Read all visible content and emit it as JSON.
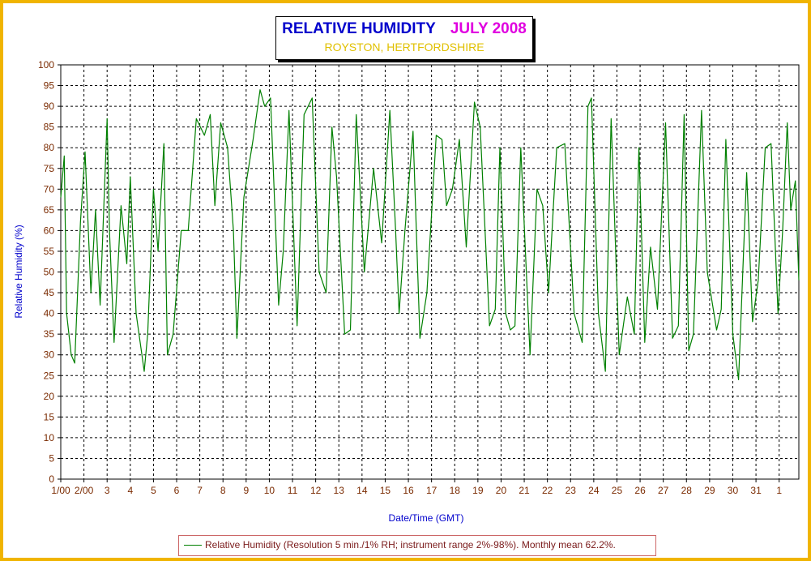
{
  "chart_data": {
    "type": "line",
    "title": "RELATIVE HUMIDITY",
    "title_date": "JULY 2008",
    "subtitle": "ROYSTON, HERTFORDSHIRE",
    "xlabel": "Date/Time (GMT)",
    "ylabel": "Relative Humidity (%)",
    "ylim": [
      0,
      100
    ],
    "xlim": [
      1,
      32.85
    ],
    "yticks": [
      0,
      5,
      10,
      15,
      20,
      25,
      30,
      35,
      40,
      45,
      50,
      55,
      60,
      65,
      70,
      75,
      80,
      85,
      90,
      95,
      100
    ],
    "x_tick_labels": [
      {
        "x": 1,
        "label": "1/00"
      },
      {
        "x": 2,
        "label": "2/00"
      },
      {
        "x": 3,
        "label": "3"
      },
      {
        "x": 4,
        "label": "4"
      },
      {
        "x": 5,
        "label": "5"
      },
      {
        "x": 6,
        "label": "6"
      },
      {
        "x": 7,
        "label": "7"
      },
      {
        "x": 8,
        "label": "8"
      },
      {
        "x": 9,
        "label": "9"
      },
      {
        "x": 10,
        "label": "10"
      },
      {
        "x": 11,
        "label": "11"
      },
      {
        "x": 12,
        "label": "12"
      },
      {
        "x": 13,
        "label": "13"
      },
      {
        "x": 14,
        "label": "14"
      },
      {
        "x": 15,
        "label": "15"
      },
      {
        "x": 16,
        "label": "16"
      },
      {
        "x": 17,
        "label": "17"
      },
      {
        "x": 18,
        "label": "18"
      },
      {
        "x": 19,
        "label": "19"
      },
      {
        "x": 20,
        "label": "20"
      },
      {
        "x": 21,
        "label": "21"
      },
      {
        "x": 22,
        "label": "22"
      },
      {
        "x": 23,
        "label": "23"
      },
      {
        "x": 24,
        "label": "24"
      },
      {
        "x": 25,
        "label": "25"
      },
      {
        "x": 26,
        "label": "26"
      },
      {
        "x": 27,
        "label": "27"
      },
      {
        "x": 28,
        "label": "28"
      },
      {
        "x": 29,
        "label": "29"
      },
      {
        "x": 30,
        "label": "30"
      },
      {
        "x": 31,
        "label": "31"
      },
      {
        "x": 32,
        "label": "1"
      }
    ],
    "grid": true,
    "legend": "bottom",
    "series": [
      {
        "name": "Relative Humidity (Resolution 5 min./1% RH; instrument range 2%-98%). Monthly mean 62.2%.",
        "color": "#008000",
        "x": [
          1.0,
          1.15,
          1.25,
          1.45,
          1.6,
          1.85,
          2.05,
          2.3,
          2.5,
          2.7,
          3.0,
          3.1,
          3.3,
          3.6,
          3.85,
          4.0,
          4.25,
          4.6,
          4.75,
          5.0,
          5.2,
          5.45,
          5.6,
          5.85,
          6.2,
          6.5,
          6.85,
          7.2,
          7.45,
          7.65,
          7.9,
          8.2,
          8.45,
          8.6,
          8.9,
          9.3,
          9.6,
          9.8,
          10.05,
          10.4,
          10.6,
          10.85,
          11.2,
          11.5,
          11.85,
          12.15,
          12.45,
          12.7,
          12.9,
          13.25,
          13.5,
          13.75,
          14.1,
          14.5,
          14.85,
          15.2,
          15.45,
          15.6,
          15.85,
          16.2,
          16.5,
          16.8,
          17.2,
          17.45,
          17.65,
          17.9,
          18.2,
          18.5,
          18.85,
          19.1,
          19.5,
          19.75,
          19.95,
          20.2,
          20.4,
          20.6,
          20.85,
          21.25,
          21.55,
          21.8,
          22.05,
          22.4,
          22.75,
          23.15,
          23.5,
          23.75,
          23.9,
          24.2,
          24.5,
          24.75,
          25.1,
          25.45,
          25.75,
          25.95,
          26.2,
          26.45,
          26.75,
          27.1,
          27.4,
          27.65,
          27.9,
          28.1,
          28.3,
          28.65,
          28.9,
          29.3,
          29.5,
          29.7,
          30.0,
          30.25,
          30.6,
          30.85,
          31.1,
          31.4,
          31.65,
          31.95,
          32.15,
          32.35,
          32.5,
          32.7,
          32.85
        ],
        "y": [
          68,
          78,
          40,
          30,
          28,
          62,
          79,
          45,
          65,
          42,
          87,
          60,
          33,
          66,
          52,
          73,
          40,
          26,
          35,
          70,
          55,
          81,
          30,
          35,
          60,
          60,
          87,
          83,
          88,
          66,
          86,
          80,
          60,
          34,
          68,
          82,
          94,
          90,
          92,
          42,
          55,
          89,
          37,
          88,
          92,
          50,
          45,
          85,
          73,
          35,
          36,
          88,
          50,
          75,
          57,
          89,
          60,
          40,
          60,
          84,
          34,
          45,
          83,
          82,
          66,
          70,
          82,
          56,
          91,
          85,
          37,
          41,
          80,
          40,
          36,
          37,
          80,
          30,
          70,
          66,
          45,
          80,
          81,
          40,
          33,
          90,
          92,
          40,
          26,
          87,
          30,
          44,
          35,
          80,
          33,
          56,
          41,
          86,
          34,
          37,
          88,
          31,
          35,
          89,
          50,
          36,
          41,
          82,
          35,
          24,
          74,
          38,
          48,
          80,
          81,
          40,
          60,
          86,
          65,
          72,
          48
        ]
      }
    ]
  }
}
